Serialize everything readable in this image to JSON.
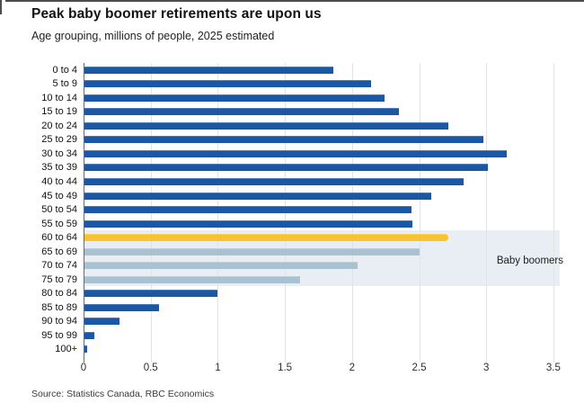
{
  "header": {
    "title": "Peak baby boomer retirements are upon us",
    "subtitle": "Age grouping, millions of people, 2025 estimated"
  },
  "annotation": {
    "label": "Baby boomers"
  },
  "source": "Source: Statistics Canada, RBC Economics",
  "chart_data": {
    "type": "bar",
    "orientation": "horizontal",
    "title": "Peak baby boomer retirements are upon us",
    "subtitle": "Age grouping, millions of people, 2025 estimated",
    "categories": [
      "0 to 4",
      "5 to 9",
      "10 to 14",
      "15 to 19",
      "20 to 24",
      "25 to 29",
      "30 to 34",
      "35 to 39",
      "40 to 44",
      "45 to 49",
      "50 to 54",
      "55 to 59",
      "60 to 64",
      "65 to 69",
      "70 to 74",
      "75 to 79",
      "80 to 84",
      "85 to 89",
      "90 to 94",
      "95 to 99",
      "100+"
    ],
    "values": [
      1.86,
      2.14,
      2.24,
      2.35,
      2.72,
      2.98,
      3.15,
      3.01,
      2.83,
      2.59,
      2.44,
      2.45,
      2.72,
      2.5,
      2.04,
      1.61,
      1.0,
      0.56,
      0.27,
      0.08,
      0.03
    ],
    "bar_groups": [
      "default",
      "default",
      "default",
      "default",
      "default",
      "default",
      "default",
      "default",
      "default",
      "default",
      "default",
      "default",
      "highlight",
      "boomer",
      "boomer",
      "boomer",
      "default",
      "default",
      "default",
      "default",
      "default"
    ],
    "colors": {
      "default": "#1a57a5",
      "highlight": "#f9c22e",
      "boomer": "#a9c2d1",
      "band": "#e9eef4"
    },
    "x_ticks": [
      0,
      0.5,
      1,
      1.5,
      2,
      2.5,
      3,
      3.5
    ],
    "x_tick_labels": [
      "0",
      "0.5",
      "1",
      "1.5",
      "2",
      "2.5",
      "3",
      "3.5"
    ],
    "xlim": [
      0,
      3.5
    ],
    "grid": "vertical",
    "band_rows": {
      "start_index": 12,
      "row_span": 4,
      "label": "Baby boomers"
    }
  }
}
